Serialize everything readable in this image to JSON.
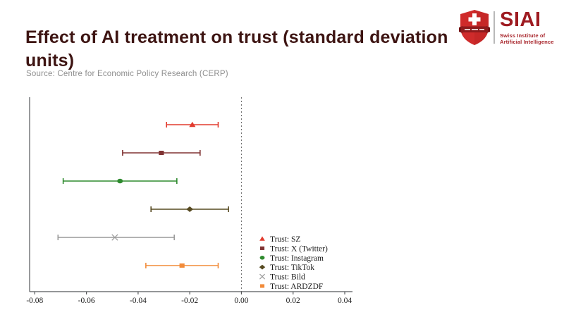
{
  "header": {
    "title": "Effect of AI treatment on trust (standard deviation units)",
    "source": "Source: Centre for Economic Policy Research (CERP)"
  },
  "logo": {
    "acronym": "SIAI",
    "subtitle_line1": "Swiss Institute of",
    "subtitle_line2": "Artificial Intelligence",
    "shield_red": "#cf2b2b",
    "banner_red": "#8e1a1c",
    "text_red": "#9e1b21"
  },
  "chart_data": {
    "type": "scatter",
    "subtype": "coefficient-plot-with-error-bars",
    "title": "Effect of AI treatment on trust (standard deviation units)",
    "xlabel": "",
    "ylabel": "",
    "xlim": [
      -0.082,
      0.043
    ],
    "x_ticks": [
      -0.08,
      -0.06,
      -0.04,
      -0.02,
      0.0,
      0.02,
      0.04
    ],
    "x_tick_labels": [
      "-0.08",
      "-0.06",
      "-0.04",
      "-0.02",
      "0.00",
      "0.02",
      "0.04"
    ],
    "zero_reference_line": 0.0,
    "grid": false,
    "legend_position": "inside lower right",
    "series": [
      {
        "name": "Trust: SZ",
        "marker": "triangle",
        "color": "#e23b2e",
        "value": -0.019,
        "ci_low": -0.029,
        "ci_high": -0.009
      },
      {
        "name": "Trust: X (Twitter)",
        "marker": "square",
        "color": "#803333",
        "value": -0.031,
        "ci_low": -0.046,
        "ci_high": -0.016
      },
      {
        "name": "Trust: Instagram",
        "marker": "circle",
        "color": "#2f8b2f",
        "value": -0.047,
        "ci_low": -0.069,
        "ci_high": -0.025
      },
      {
        "name": "Trust: TikTok",
        "marker": "diamond",
        "color": "#574a21",
        "value": -0.02,
        "ci_low": -0.035,
        "ci_high": -0.005
      },
      {
        "name": "Trust: Bild",
        "marker": "x",
        "color": "#9a9a9a",
        "value": -0.049,
        "ci_low": -0.071,
        "ci_high": -0.026
      },
      {
        "name": "Trust: ARDZDF",
        "marker": "square",
        "color": "#f28b39",
        "value": -0.023,
        "ci_low": -0.037,
        "ci_high": -0.009
      }
    ]
  }
}
